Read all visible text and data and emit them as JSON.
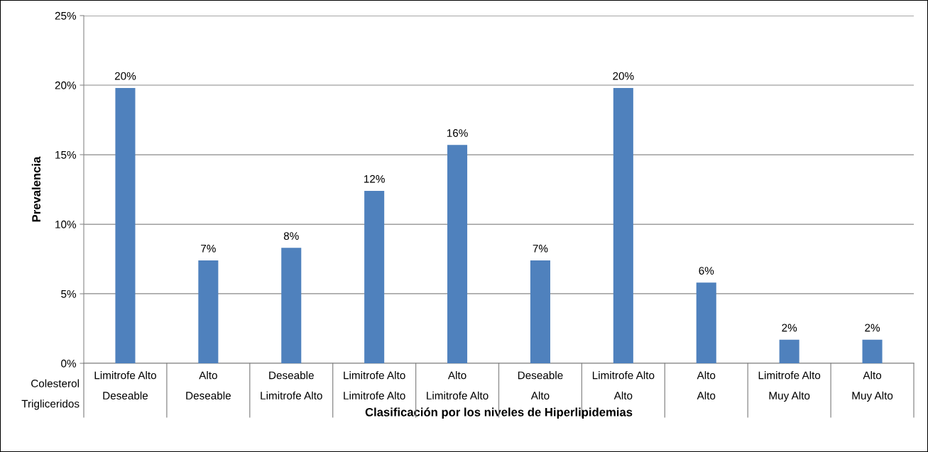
{
  "chart_data": {
    "type": "bar",
    "xlabel": "Clasificación por los niveles de Hiperlipidemias",
    "ylabel": "Prevalencia",
    "categories": [
      "Limitrofe Alto\nDeseable",
      "Alto\nDeseable",
      "Deseable\nLimitrofe Alto",
      "Limitrofe Alto\nLimitrofe Alto",
      "Alto\nLimitrofe Alto",
      "Deseable\nAlto",
      "Limitrofe Alto\nAlto",
      "Alto\nAlto",
      "Limitrofe Alto\nMuy Alto",
      "Alto\nMuy Alto"
    ],
    "values": [
      19.8,
      7.4,
      8.3,
      12.4,
      15.7,
      7.4,
      19.8,
      5.8,
      1.7,
      1.7
    ],
    "value_labels": [
      "20%",
      "7%",
      "8%",
      "12%",
      "16%",
      "7%",
      "20%",
      "6%",
      "2%",
      "2%"
    ],
    "color": "#4f81bd",
    "ylim": [
      0,
      25
    ],
    "yticks": [
      {
        "value": 0,
        "label": "0%"
      },
      {
        "value": 5,
        "label": "5%"
      },
      {
        "value": 10,
        "label": "10%"
      },
      {
        "value": 15,
        "label": "15%"
      },
      {
        "value": 20,
        "label": "20%"
      },
      {
        "value": 25,
        "label": "25%"
      }
    ],
    "grid": "y",
    "annotations": [
      "Colesterol\nTrigliceridos"
    ]
  }
}
